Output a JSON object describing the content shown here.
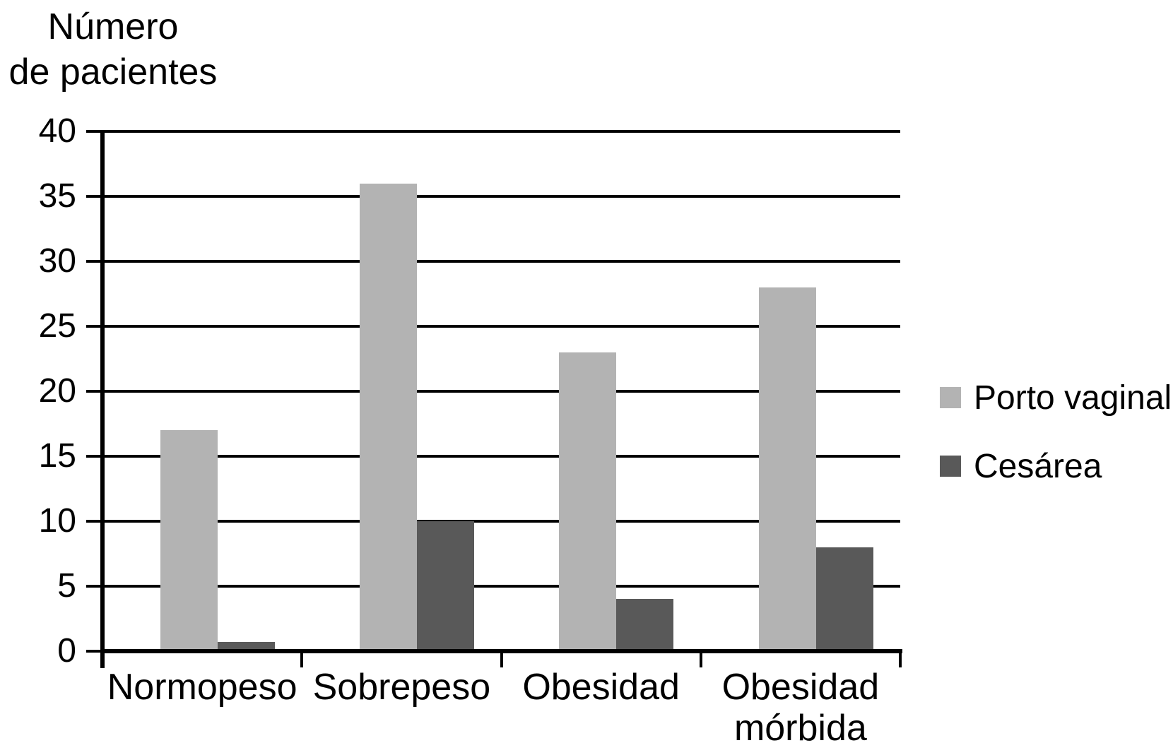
{
  "figure": {
    "background": "#ffffff",
    "text_color": "#000000",
    "axis_color": "#000000"
  },
  "chart_data": {
    "type": "bar",
    "title": "Número de pacientes",
    "title_lines": [
      "Número",
      "de pacientes"
    ],
    "ylabel": "Número de pacientes",
    "xlabel": "",
    "categories": [
      "Normopeso",
      "Sobrepeso",
      "Obesidad",
      "Obesidad mórbida"
    ],
    "category_label_lines": [
      [
        "Normopeso"
      ],
      [
        "Sobrepeso"
      ],
      [
        "Obesidad"
      ],
      [
        "Obesidad",
        "mórbida"
      ]
    ],
    "series": [
      {
        "name": "Porto vaginal",
        "color": "#b3b3b3",
        "values": [
          17,
          36,
          23,
          28
        ]
      },
      {
        "name": "Cesárea",
        "color": "#595959",
        "values": [
          0.7,
          10,
          4,
          8
        ]
      }
    ],
    "ylim": [
      0,
      40
    ],
    "ytick_step": 5,
    "yticks": [
      0,
      5,
      10,
      15,
      20,
      25,
      30,
      35,
      40
    ],
    "grid": true,
    "legend_position": "right"
  }
}
